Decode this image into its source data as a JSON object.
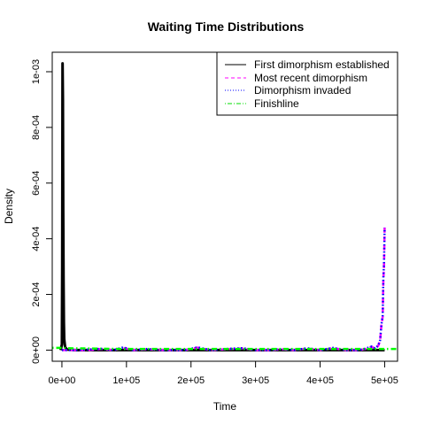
{
  "chart_data": {
    "type": "line",
    "title": "Waiting Time Distributions",
    "xlabel": "Time",
    "ylabel": "Density",
    "xlim": [
      -15000,
      520000
    ],
    "ylim": [
      -4e-05,
      0.00107
    ],
    "x_ticks": [
      0,
      100000,
      200000,
      300000,
      400000,
      500000
    ],
    "x_tick_labels": [
      "0e+00",
      "1e+05",
      "2e+05",
      "3e+05",
      "4e+05",
      "5e+05"
    ],
    "y_ticks": [
      0,
      0.0002,
      0.0004,
      0.0006,
      0.0008,
      0.001
    ],
    "y_tick_labels": [
      "0e+00",
      "2e-04",
      "4e-04",
      "6e-04",
      "8e-04",
      "1e-03"
    ],
    "legend_position": "top-right",
    "series": [
      {
        "name": "First dimorphism established",
        "color": "#000000",
        "style": "solid",
        "x": [
          -2000,
          0,
          500,
          1000,
          1500,
          2000,
          2500,
          3000,
          3500,
          4000,
          5000,
          8000,
          20000,
          60000,
          200000,
          400000,
          500000
        ],
        "y": [
          0,
          2e-05,
          0.0003,
          0.00103,
          0.0009,
          0.0005,
          0.00025,
          0.0001,
          4e-05,
          3e-05,
          1e-05,
          2e-06,
          0,
          0,
          0,
          0,
          0
        ]
      },
      {
        "name": "Most recent dimorphism",
        "color": "#ff00ff",
        "style": "dashed",
        "x": [
          0,
          20000,
          40000,
          60000,
          80000,
          95000,
          110000,
          130000,
          160000,
          190000,
          210000,
          230000,
          260000,
          280000,
          300000,
          320000,
          340000,
          360000,
          380000,
          400000,
          420000,
          440000,
          460000,
          470000,
          480000,
          485000,
          490000,
          493000,
          495000,
          497000,
          498000,
          499000,
          500000
        ],
        "y": [
          0,
          0,
          0,
          4e-06,
          0,
          8e-06,
          0,
          3e-06,
          0,
          0,
          9e-06,
          0,
          4e-06,
          6e-06,
          0,
          0,
          3e-06,
          0,
          6e-06,
          0,
          7e-06,
          0,
          0,
          4e-06,
          1.2e-05,
          5e-06,
          1.5e-05,
          3.5e-05,
          9e-05,
          0.00012,
          0.00025,
          0.0003,
          0.00044
        ]
      },
      {
        "name": "Dimorphism invaded",
        "color": "#0000ff",
        "style": "dotted",
        "x": [
          0,
          20000,
          40000,
          60000,
          80000,
          95000,
          110000,
          130000,
          160000,
          190000,
          210000,
          230000,
          260000,
          280000,
          300000,
          320000,
          340000,
          360000,
          380000,
          400000,
          420000,
          440000,
          460000,
          470000,
          480000,
          485000,
          490000,
          493000,
          495000,
          497000,
          498000,
          499000,
          500000
        ],
        "y": [
          0,
          0,
          2e-06,
          5e-06,
          0,
          1e-05,
          0,
          4e-06,
          0,
          0,
          1e-05,
          0,
          5e-06,
          7e-06,
          0,
          0,
          4e-06,
          0,
          7e-06,
          0,
          8e-06,
          0,
          0,
          5e-06,
          1.3e-05,
          6e-06,
          1.6e-05,
          3.6e-05,
          9.2e-05,
          0.000125,
          0.00026,
          0.00031,
          0.00044
        ]
      },
      {
        "name": "Finishline",
        "color": "#00ff00",
        "style": "dotdash",
        "x": [
          -15000,
          0,
          10000,
          20000,
          30000,
          40000,
          60000,
          100000,
          200000,
          300000,
          400000,
          500000,
          520000
        ],
        "y": [
          8e-06,
          8e-06,
          7e-06,
          6e-06,
          6e-06,
          6e-06,
          5e-06,
          4e-06,
          4e-06,
          4e-06,
          4e-06,
          4e-06,
          4e-06
        ]
      }
    ]
  }
}
